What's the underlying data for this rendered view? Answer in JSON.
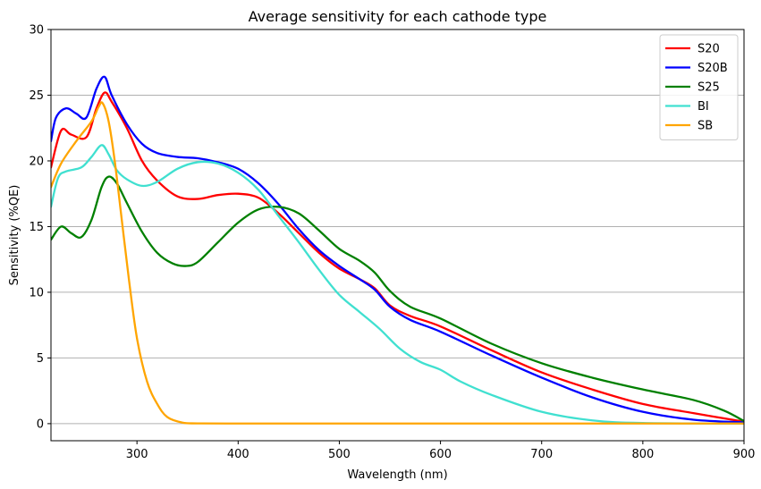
{
  "chart_data": {
    "type": "line",
    "title": "Average sensitivity for each cathode type",
    "xlabel": "Wavelength (nm)",
    "ylabel": "Sensitivity (%QE)",
    "xlim": [
      215,
      900
    ],
    "ylim": [
      -1.3,
      30
    ],
    "xticks": [
      300,
      400,
      500,
      600,
      700,
      800,
      900
    ],
    "yticks": [
      0,
      5,
      10,
      15,
      20,
      25,
      30
    ],
    "grid": "horizontal",
    "legend_position": "top-right",
    "series": [
      {
        "name": "S20",
        "color": "#ff0000",
        "x": [
          215,
          225,
          235,
          250,
          260,
          268,
          275,
          290,
          305,
          320,
          340,
          360,
          380,
          400,
          420,
          440,
          460,
          480,
          500,
          520,
          535,
          550,
          570,
          600,
          650,
          700,
          750,
          800,
          850,
          900
        ],
        "y": [
          19.5,
          22.3,
          22.0,
          21.8,
          24.0,
          25.2,
          24.5,
          22.5,
          20.0,
          18.5,
          17.3,
          17.1,
          17.4,
          17.5,
          17.2,
          16.0,
          14.5,
          13.0,
          11.8,
          11.0,
          10.3,
          9.0,
          8.2,
          7.4,
          5.6,
          3.9,
          2.6,
          1.5,
          0.8,
          0.15
        ]
      },
      {
        "name": "S20B",
        "color": "#0000ff",
        "x": [
          215,
          220,
          230,
          240,
          250,
          260,
          268,
          275,
          290,
          305,
          320,
          340,
          360,
          380,
          400,
          420,
          440,
          460,
          480,
          500,
          520,
          535,
          550,
          570,
          600,
          650,
          700,
          750,
          800,
          850,
          900
        ],
        "y": [
          21.5,
          23.3,
          24.0,
          23.6,
          23.3,
          25.5,
          26.4,
          25.0,
          22.8,
          21.3,
          20.6,
          20.3,
          20.2,
          19.9,
          19.4,
          18.3,
          16.7,
          14.8,
          13.2,
          12.0,
          11.0,
          10.2,
          8.9,
          7.9,
          7.0,
          5.2,
          3.5,
          2.0,
          0.9,
          0.3,
          0.1
        ]
      },
      {
        "name": "S25",
        "color": "#008000",
        "x": [
          215,
          225,
          235,
          245,
          255,
          265,
          272,
          280,
          290,
          305,
          320,
          335,
          348,
          360,
          380,
          400,
          420,
          440,
          460,
          480,
          500,
          520,
          535,
          550,
          570,
          600,
          650,
          700,
          750,
          800,
          850,
          880,
          900
        ],
        "y": [
          14.0,
          15.0,
          14.5,
          14.2,
          15.5,
          18.0,
          18.8,
          18.3,
          16.8,
          14.6,
          13.0,
          12.2,
          12.0,
          12.3,
          13.8,
          15.3,
          16.3,
          16.5,
          16.0,
          14.7,
          13.3,
          12.4,
          11.5,
          10.1,
          8.9,
          8.0,
          6.1,
          4.6,
          3.5,
          2.6,
          1.8,
          1.0,
          0.2
        ]
      },
      {
        "name": "BI",
        "color": "#40e0d0",
        "x": [
          215,
          222,
          230,
          245,
          255,
          265,
          272,
          280,
          290,
          305,
          320,
          340,
          360,
          380,
          400,
          420,
          440,
          460,
          480,
          500,
          520,
          540,
          560,
          580,
          600,
          620,
          650,
          700,
          750,
          800,
          900
        ],
        "y": [
          16.5,
          18.7,
          19.2,
          19.5,
          20.3,
          21.2,
          20.5,
          19.3,
          18.6,
          18.1,
          18.4,
          19.4,
          19.9,
          19.8,
          19.1,
          17.8,
          15.8,
          13.8,
          11.7,
          9.8,
          8.5,
          7.2,
          5.7,
          4.7,
          4.1,
          3.2,
          2.2,
          0.9,
          0.25,
          0.05,
          0.0
        ]
      },
      {
        "name": "SB",
        "color": "#ffa500",
        "x": [
          215,
          225,
          240,
          255,
          262,
          266,
          272,
          278,
          285,
          292,
          300,
          310,
          320,
          330,
          345,
          360,
          400,
          500,
          600,
          700,
          800,
          900
        ],
        "y": [
          18.0,
          19.8,
          21.5,
          23.0,
          24.1,
          24.4,
          23.0,
          20.0,
          15.5,
          11.0,
          6.5,
          3.2,
          1.5,
          0.5,
          0.08,
          0.02,
          0.01,
          0.01,
          0.01,
          0.01,
          0.01,
          0.01
        ]
      }
    ]
  }
}
